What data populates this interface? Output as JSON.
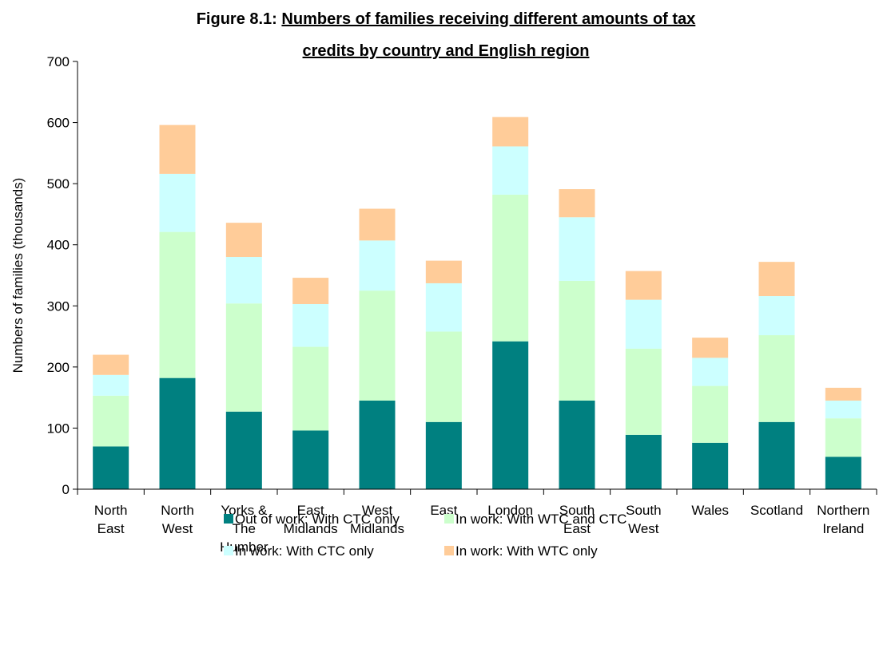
{
  "chart_data": {
    "type": "stacked_bar",
    "title_label": "Figure 8.1:",
    "title": [
      "Numbers of families receiving different amounts of tax",
      "credits by country and English region"
    ],
    "y_label": "Numbers of families (thousands)",
    "categories": [
      [
        "North",
        "East"
      ],
      [
        "North",
        "West"
      ],
      [
        "Yorks &",
        "The",
        "Humber"
      ],
      [
        "East",
        "Midlands"
      ],
      [
        "West",
        "Midlands"
      ],
      [
        "East"
      ],
      [
        "London"
      ],
      [
        "South",
        "East"
      ],
      [
        "South",
        "West"
      ],
      [
        "Wales"
      ],
      [
        "Scotland"
      ],
      [
        "Northern",
        "Ireland"
      ]
    ],
    "series": [
      {
        "name": "Out of work: With CTC only",
        "color": "#008080",
        "values": [
          70,
          182,
          127,
          96,
          145,
          110,
          242,
          145,
          89,
          76,
          110,
          53
        ]
      },
      {
        "name": "In work: With WTC and CTC",
        "color": "#ccffcc",
        "values": [
          83,
          239,
          177,
          137,
          180,
          148,
          240,
          196,
          141,
          93,
          142,
          63
        ]
      },
      {
        "name": "In work: With CTC only",
        "color": "#ccffff",
        "values": [
          34,
          95,
          76,
          70,
          82,
          79,
          79,
          104,
          80,
          46,
          64,
          29
        ]
      },
      {
        "name": "In work: With WTC only",
        "color": "#ffcc99",
        "values": [
          33,
          80,
          56,
          43,
          52,
          37,
          48,
          46,
          47,
          33,
          56,
          21
        ]
      }
    ],
    "ylim": [
      0,
      700
    ],
    "yticks": [
      0,
      100,
      200,
      300,
      400,
      500,
      600,
      700
    ],
    "grid": false,
    "legend": "bottom"
  }
}
